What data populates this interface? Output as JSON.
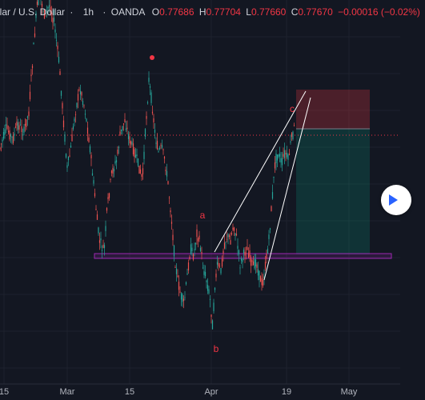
{
  "header": {
    "symbol": "llar / U.S. Dollar",
    "separator": "·",
    "timeframe": "1h",
    "separator2": "·",
    "broker": "OANDA",
    "ohlc": [
      {
        "label": "O",
        "value": "0.77686"
      },
      {
        "label": "H",
        "value": "0.77704"
      },
      {
        "label": "L",
        "value": "0.77660"
      },
      {
        "label": "C",
        "value": "0.77670"
      }
    ],
    "change": "−0.00016 (−0.02%)"
  },
  "x_axis": [
    "15",
    "Mar",
    "15",
    "Apr",
    "19",
    "May"
  ],
  "wave_labels": {
    "a": "a",
    "b": "b",
    "c": "c"
  },
  "colors": {
    "background": "#131722",
    "grid": "#1e222d",
    "up": "#26a69a",
    "down": "#ef5350",
    "label": "#f23645",
    "support_zone": "#9c27b0",
    "trendline": "#ffffff",
    "stop_zone": "#f23645",
    "target_zone": "#089981"
  },
  "play_button": {
    "icon": "play-icon"
  }
}
